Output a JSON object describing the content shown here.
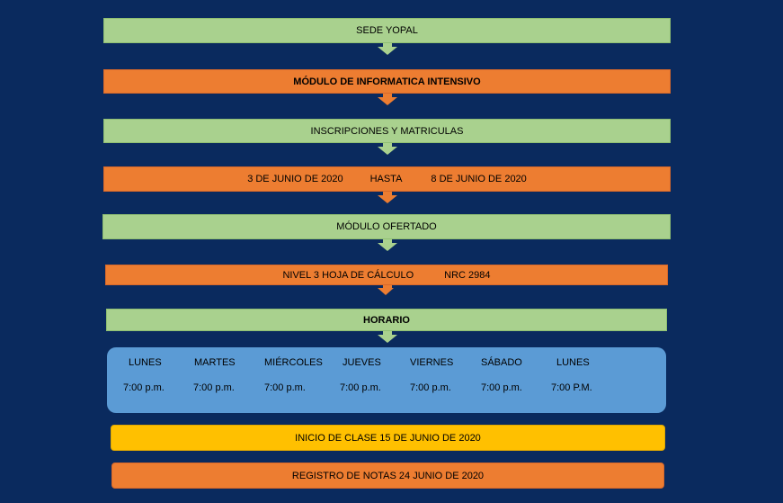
{
  "steps": {
    "sede": "SEDE YOPAL",
    "modulo": "MÓDULO DE INFORMATICA INTENSIVO",
    "inscripciones": "INSCRIPCIONES Y MATRICULAS",
    "fecha_inicio": "3 DE JUNIO DE 2020",
    "hasta": "HASTA",
    "fecha_fin": "8 DE JUNIO DE 2020",
    "modulo_ofertado": "MÓDULO OFERTADO",
    "nivel": "NIVEL 3 HOJA DE CÁLCULO",
    "nrc": "NRC 2984",
    "horario": "HORARIO"
  },
  "schedule": {
    "days": [
      {
        "day": "LUNES",
        "time": "7:00 p.m."
      },
      {
        "day": "MARTES",
        "time": "7:00 p.m."
      },
      {
        "day": "MIÉRCOLES",
        "time": "7:00 p.m."
      },
      {
        "day": "JUEVES",
        "time": "7:00 p.m."
      },
      {
        "day": "VIERNES",
        "time": "7:00 p.m."
      },
      {
        "day": "SÁBADO",
        "time": "7:00 p.m."
      },
      {
        "day": "LUNES",
        "time": "7:00 P.M."
      }
    ]
  },
  "footer": {
    "inicio": "INICIO DE CLASE 15 DE JUNIO DE 2020",
    "registro": "REGISTRO DE NOTAS 24 JUNIO DE 2020"
  },
  "colors": {
    "background": "#0a2a5e",
    "green": "#a9d18e",
    "orange": "#ed7d31",
    "blue": "#5b9bd5",
    "yellow": "#ffc000"
  }
}
